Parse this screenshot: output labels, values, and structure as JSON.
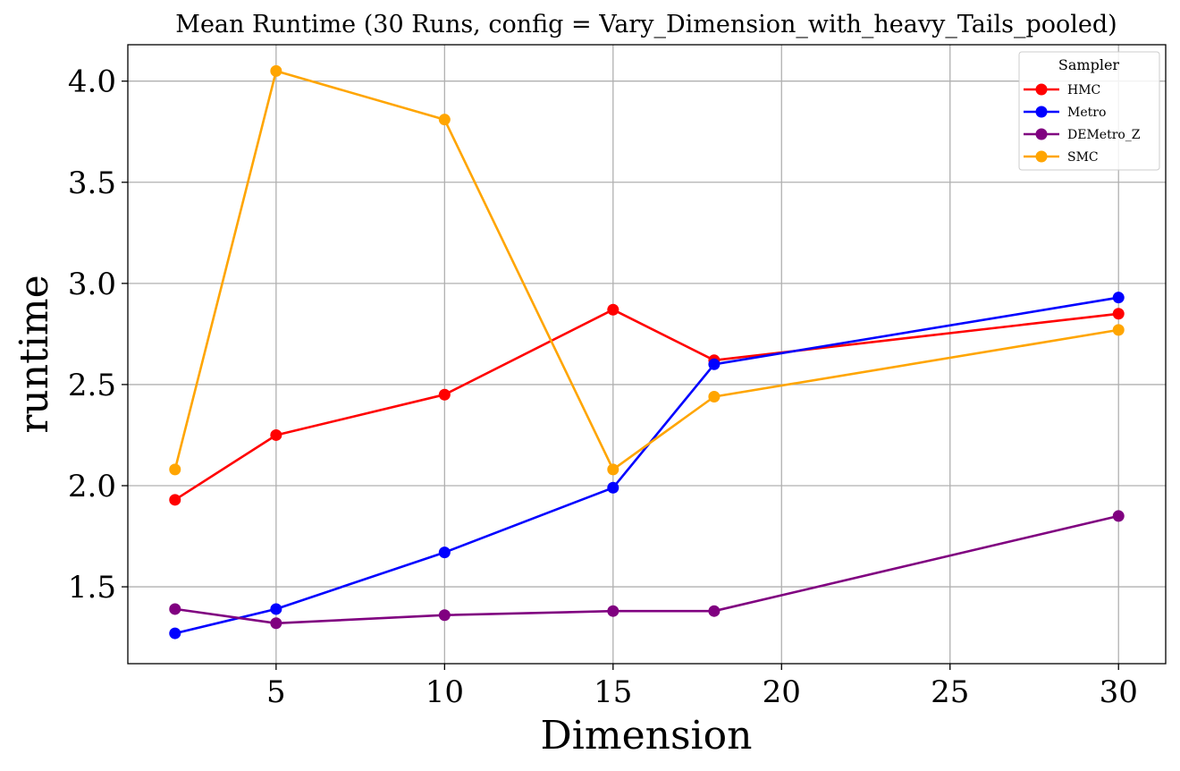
{
  "chart_data": {
    "type": "line",
    "title": "Mean Runtime (30 Runs, config = Vary_Dimension_with_heavy_Tails_pooled)",
    "xlabel": "Dimension",
    "ylabel": "runtime",
    "xlim": [
      0.6,
      31.4
    ],
    "ylim": [
      1.12,
      4.18
    ],
    "xticks": [
      5,
      10,
      15,
      20,
      25,
      30
    ],
    "yticks": [
      1.5,
      2.0,
      2.5,
      3.0,
      3.5,
      4.0
    ],
    "xtick_labels": [
      "5",
      "10",
      "15",
      "20",
      "25",
      "30"
    ],
    "ytick_labels": [
      "1.5",
      "2.0",
      "2.5",
      "3.0",
      "3.5",
      "4.0"
    ],
    "grid": true,
    "legend": {
      "title": "Sampler",
      "position": "top-right"
    },
    "x": [
      2,
      5,
      10,
      15,
      18,
      30
    ],
    "series": [
      {
        "name": "HMC",
        "color": "#ff0000",
        "values": [
          1.93,
          2.25,
          2.45,
          2.87,
          2.62,
          2.85
        ]
      },
      {
        "name": "Metro",
        "color": "#0000ff",
        "values": [
          1.27,
          1.39,
          1.67,
          1.99,
          2.6,
          2.93
        ]
      },
      {
        "name": "DEMetro_Z",
        "color": "#800080",
        "values": [
          1.39,
          1.32,
          1.36,
          1.38,
          1.38,
          1.85
        ]
      },
      {
        "name": "SMC",
        "color": "#ffa500",
        "values": [
          2.08,
          4.05,
          3.81,
          2.08,
          2.44,
          2.77
        ]
      }
    ]
  }
}
